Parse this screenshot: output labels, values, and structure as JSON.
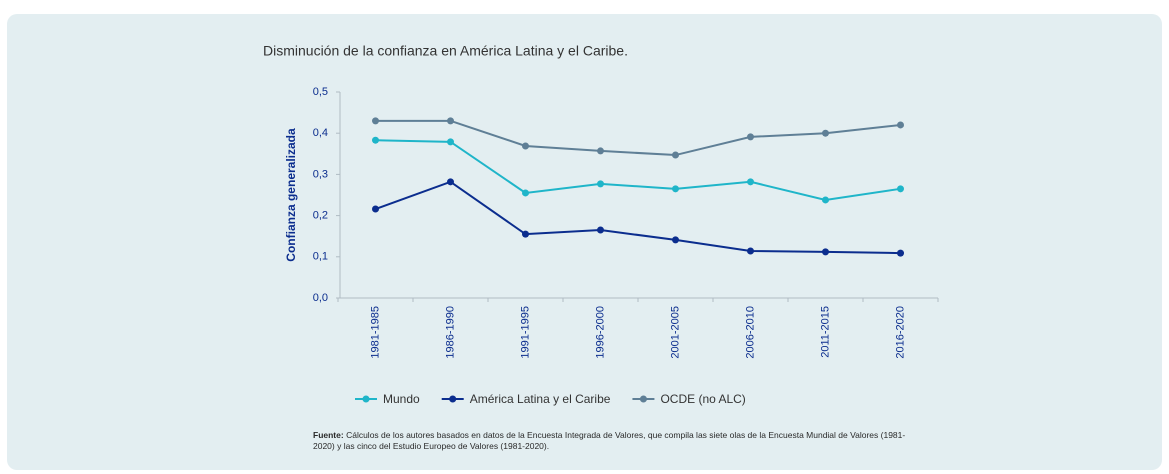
{
  "chart_data": {
    "type": "line",
    "title": "Disminución de la confianza en América Latina y el Caribe.",
    "y_label": "Confianza generalizada",
    "categories": [
      "1981-1985",
      "1986-1990",
      "1991-1995",
      "1996-2000",
      "2001-2005",
      "2006-2010",
      "2011-2015",
      "2016-2020"
    ],
    "series": [
      {
        "name": "Mundo",
        "color": "#1fb5c9",
        "values": [
          0.383,
          0.379,
          0.255,
          0.277,
          0.265,
          0.282,
          0.238,
          0.265
        ]
      },
      {
        "name": "América Latina y el Caribe",
        "color": "#0b2d8e",
        "values": [
          0.216,
          0.282,
          0.155,
          0.165,
          0.141,
          0.114,
          0.112,
          0.109
        ]
      },
      {
        "name": "OCDE (no ALC)",
        "color": "#5f7f96",
        "values": [
          0.43,
          0.43,
          0.369,
          0.357,
          0.347,
          0.391,
          0.4,
          0.42
        ]
      }
    ],
    "ylim": [
      0,
      0.5
    ],
    "yticks": [
      {
        "value": 0,
        "label": "0,0"
      },
      {
        "value": 0.1,
        "label": "0,1"
      },
      {
        "value": 0.2,
        "label": "0,2"
      },
      {
        "value": 0.3,
        "label": "0,3"
      },
      {
        "value": 0.4,
        "label": "0,4"
      },
      {
        "value": 0.5,
        "label": "0,5"
      }
    ],
    "source_label": "Fuente:",
    "source": "Cálculos de los autores basados en datos de la Encuesta Integrada de Valores, que compila las siete olas de la Encuesta Mundial de Valores (1981-2020) y las cinco del Estudio Europeo de Valores (1981-2020)."
  }
}
